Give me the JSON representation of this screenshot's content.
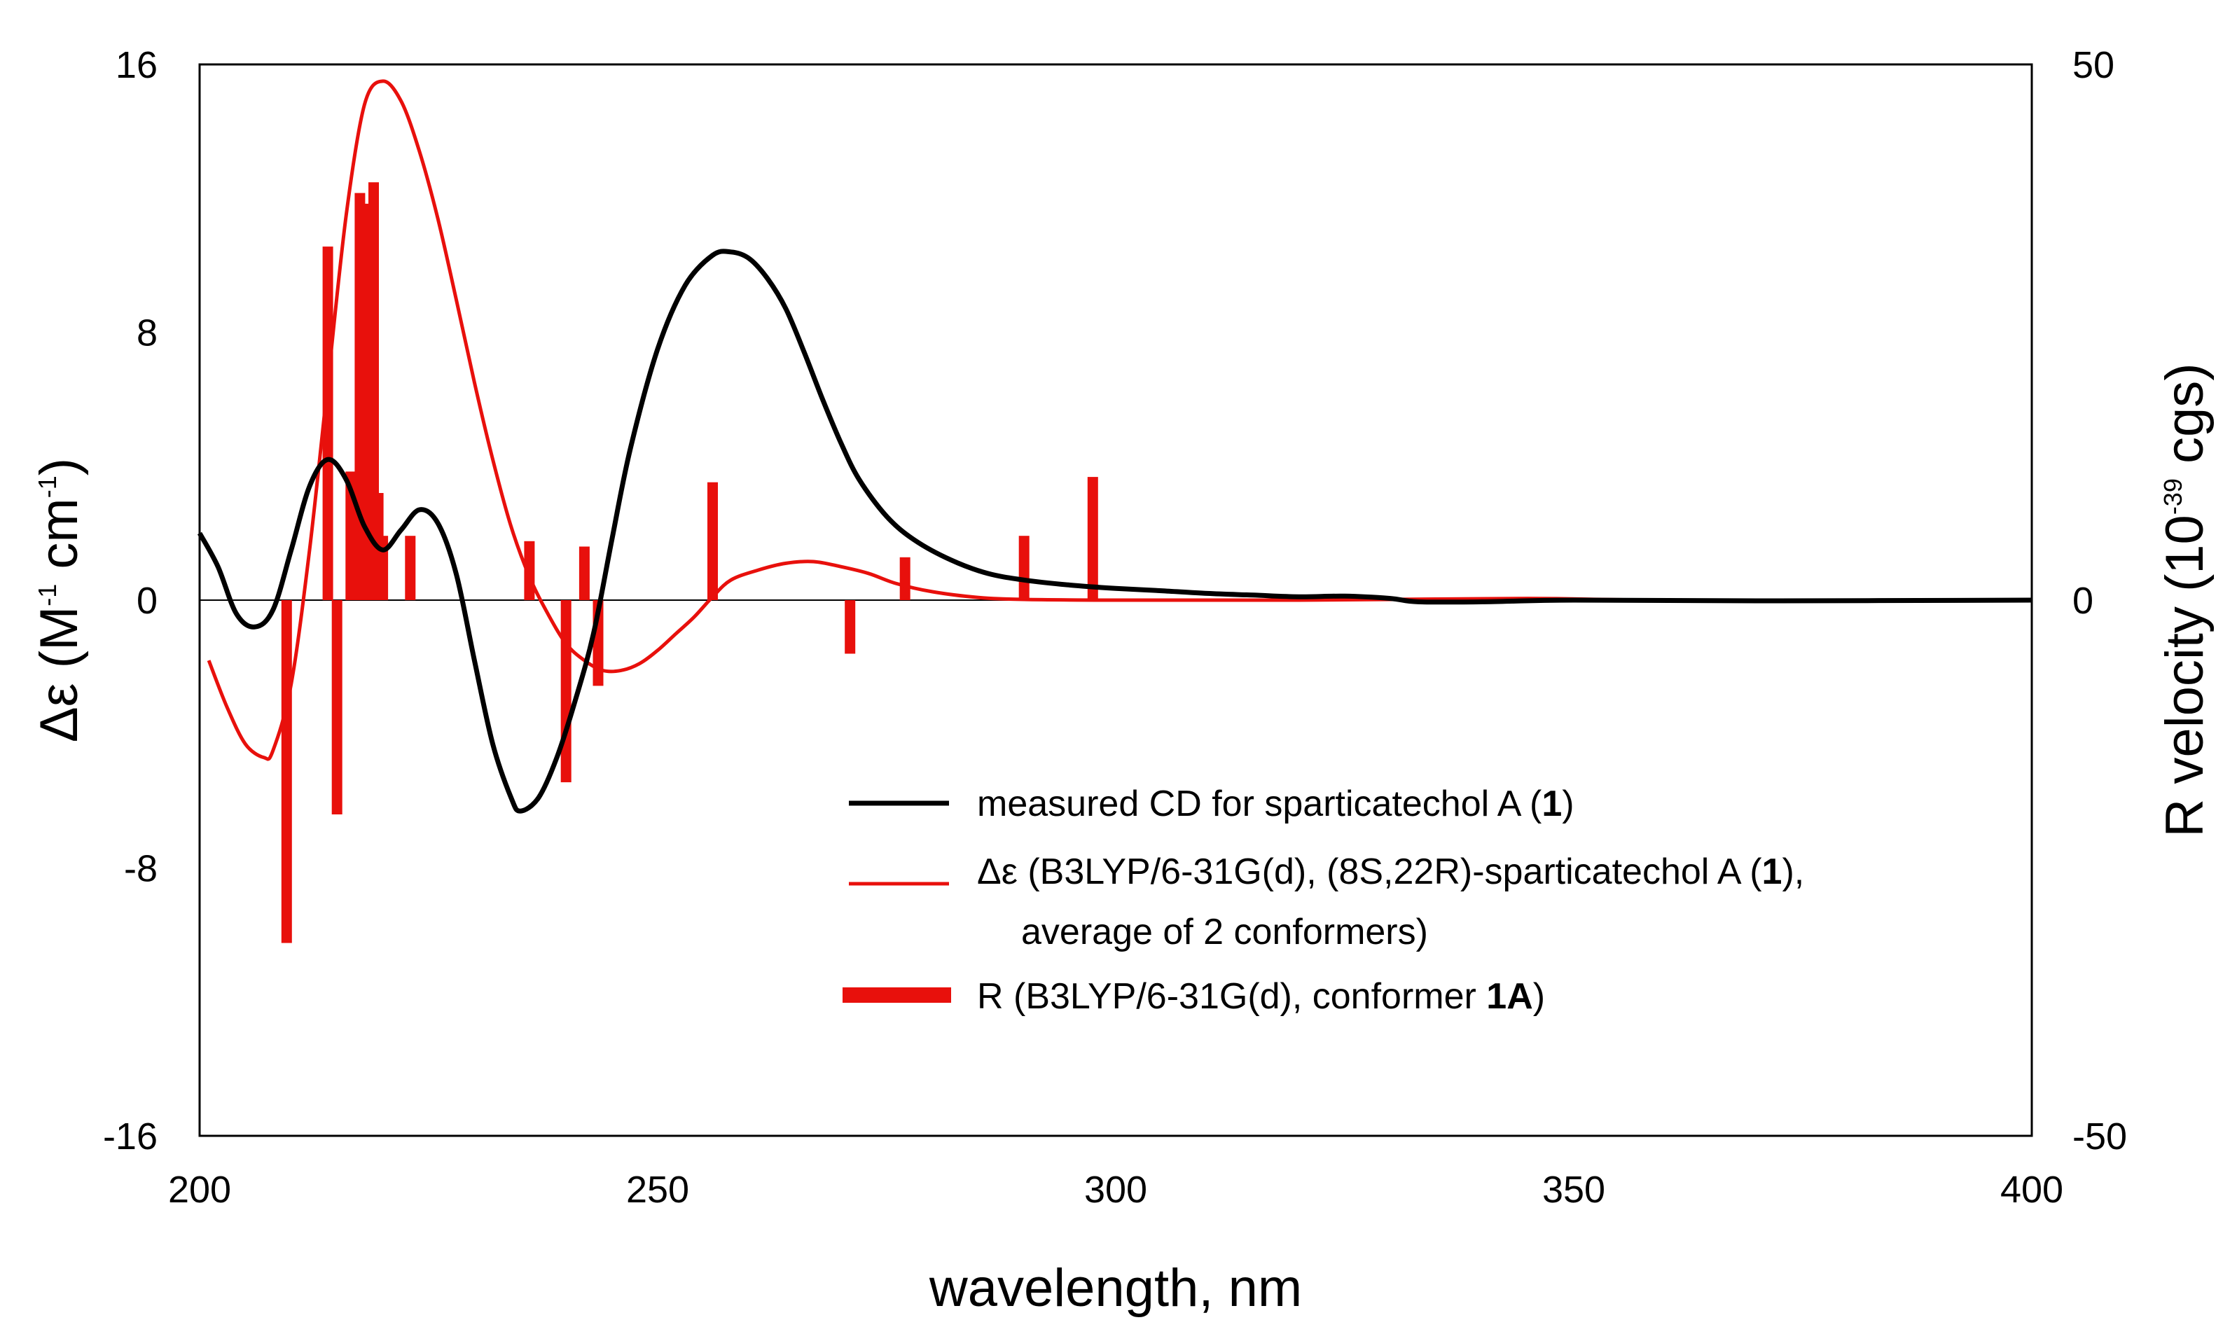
{
  "chart_data": {
    "type": "line",
    "title": "",
    "xlabel": "wavelength, nm",
    "ylabel": {
      "prefix": "Δε (M",
      "sup1": "-1",
      "mid": " cm",
      "sup2": "-1",
      "suffix": ")"
    },
    "y2label": {
      "prefix": "R velocity (10",
      "sup": "-39",
      "suffix": "  cgs)"
    },
    "xlim": [
      200,
      400
    ],
    "ylim": [
      -16,
      16
    ],
    "y2lim": [
      -50,
      50
    ],
    "x_ticks": [
      "200",
      "250",
      "300",
      "350",
      "400"
    ],
    "y_ticks": [
      "16",
      "8",
      "0",
      "-8",
      "-16"
    ],
    "y2_ticks": [
      "50",
      "0",
      "-50"
    ],
    "colors": {
      "measured": "#000000",
      "calculated": "#e8100c",
      "bars": "#e8100c",
      "zero_line": "#000000"
    },
    "series": [
      {
        "name": "measured CD for sparticatechol A (1)",
        "axis": "left",
        "x": [
          200,
          202,
          204,
          206,
          208,
          210,
          212,
          214,
          216,
          218,
          220,
          222,
          224,
          226,
          228,
          230,
          232,
          234,
          235,
          237,
          239,
          241,
          243,
          245,
          247,
          250,
          253,
          256,
          258,
          260,
          262,
          264,
          266,
          268,
          270,
          272,
          275,
          278,
          282,
          286,
          290,
          295,
          300,
          305,
          310,
          315,
          320,
          325,
          330,
          333,
          340,
          350,
          370,
          400
        ],
        "y": [
          2.0,
          1.0,
          -0.4,
          -0.8,
          -0.3,
          1.5,
          3.4,
          4.2,
          3.6,
          2.2,
          1.5,
          2.1,
          2.7,
          2.3,
          0.8,
          -1.8,
          -4.3,
          -5.9,
          -6.3,
          -5.9,
          -4.7,
          -3.0,
          -1.0,
          1.8,
          4.5,
          7.5,
          9.4,
          10.3,
          10.4,
          10.2,
          9.6,
          8.7,
          7.4,
          6.0,
          4.7,
          3.6,
          2.5,
          1.8,
          1.2,
          0.8,
          0.6,
          0.45,
          0.35,
          0.28,
          0.2,
          0.15,
          0.1,
          0.12,
          0.05,
          -0.05,
          -0.05,
          0.0,
          -0.02,
          0.0
        ]
      },
      {
        "name": "Δε (B3LYP/6-31G(d), (8S,22R)-sparticatechol A (1), average of 2 conformers)",
        "axis": "left",
        "x": [
          201,
          203,
          205,
          207,
          208,
          210,
          212,
          214,
          216,
          218,
          220,
          222,
          224,
          226,
          228,
          230,
          232,
          234,
          236,
          238,
          240,
          242,
          244,
          246,
          248,
          250,
          252,
          254,
          256,
          258,
          261,
          264,
          267,
          270,
          273,
          276,
          280,
          285,
          290,
          300,
          320,
          345,
          360,
          400
        ],
        "y": [
          -1.8,
          -3.2,
          -4.3,
          -4.7,
          -4.5,
          -2.5,
          1.5,
          6.5,
          11.5,
          14.8,
          15.5,
          14.9,
          13.4,
          11.4,
          9.0,
          6.5,
          4.2,
          2.2,
          0.7,
          -0.4,
          -1.3,
          -1.8,
          -2.1,
          -2.1,
          -1.9,
          -1.5,
          -1.0,
          -0.5,
          0.1,
          0.6,
          0.9,
          1.1,
          1.15,
          1.0,
          0.8,
          0.5,
          0.25,
          0.08,
          0.02,
          0.0,
          0.0,
          0.05,
          0.0,
          0.0
        ]
      }
    ],
    "bars": {
      "name": "R (B3LYP/6-31G(d), conformer 1A)",
      "axis": "right",
      "x": [
        209.5,
        214,
        215,
        216.5,
        217.5,
        218.2,
        219,
        219.5,
        220,
        223,
        236,
        240,
        242,
        243.5,
        256,
        271,
        277,
        290,
        297.5
      ],
      "values": [
        -32,
        33,
        -20,
        12,
        38,
        37,
        39,
        10,
        6,
        6,
        5.5,
        -17,
        5,
        -8,
        11,
        -5,
        4,
        6,
        11.5
      ]
    }
  },
  "legend": {
    "measured": {
      "text": "measured CD for sparticatechol A (",
      "bold": "1",
      "tail": ")"
    },
    "calculated_line1": {
      "text": "Δε (B3LYP/6-31G(d), (8S,22R)-sparticatechol A (",
      "bold": "1",
      "tail": "),"
    },
    "calculated_line2": {
      "text": "average of 2 conformers)"
    },
    "bars": {
      "text": "R (B3LYP/6-31G(d), conformer ",
      "bold": "1A",
      "tail": ")"
    }
  }
}
